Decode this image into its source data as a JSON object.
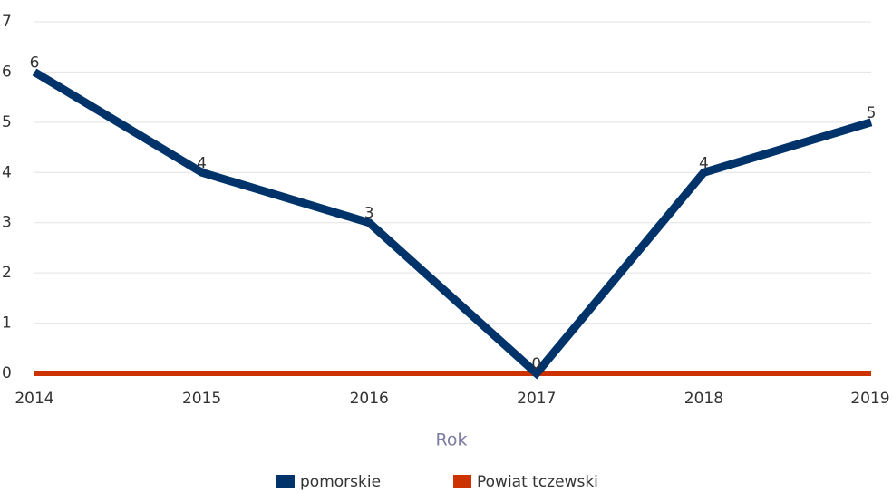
{
  "chart_data": {
    "type": "line",
    "categories": [
      "2014",
      "2015",
      "2016",
      "2017",
      "2018",
      "2019"
    ],
    "series": [
      {
        "name": "pomorskie",
        "color": "#00336a",
        "values": [
          6,
          4,
          3,
          0,
          4,
          5
        ]
      },
      {
        "name": "Powiat tczewski",
        "color": "#cc3300",
        "values": [
          0,
          0,
          0,
          0,
          0,
          0
        ]
      }
    ],
    "data_labels_series": 0,
    "ylim": [
      0,
      7
    ],
    "yticks": [
      0,
      1,
      2,
      3,
      4,
      5,
      6,
      7
    ],
    "grid": true,
    "x_label": "Rok",
    "legend": "bottom"
  }
}
